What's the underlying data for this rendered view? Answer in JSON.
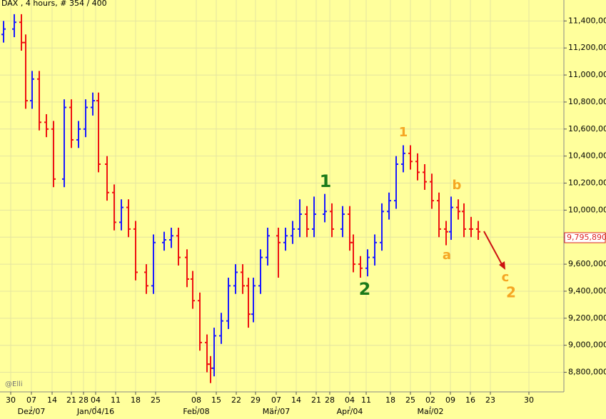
{
  "chart_data": {
    "type": "ohlc",
    "title": "DAX , 4 hours, # 354 / 400",
    "watermark": "@Elli",
    "up_color": "#1a1aff",
    "down_color": "#ee1111",
    "xlim": [
      0,
      158
    ],
    "ylim": [
      8655000,
      11555000
    ],
    "grid": true,
    "x": [
      1,
      4,
      6,
      7.2,
      9,
      11,
      13,
      15,
      18,
      20,
      22,
      24,
      26,
      27.6,
      30,
      32,
      34,
      36,
      38,
      41,
      43,
      46,
      48,
      50,
      52.4,
      54,
      56,
      58,
      59,
      60,
      62,
      64,
      66,
      68,
      69.6,
      71,
      73,
      75,
      78,
      80,
      82,
      84,
      86,
      88,
      91,
      93,
      96,
      98,
      99,
      101,
      103,
      105,
      107,
      109,
      111,
      113,
      115,
      117,
      119,
      121,
      123,
      125,
      126.4,
      128.4,
      130,
      132,
      134
    ],
    "open": [
      11300000,
      11340000,
      11390000,
      11240000,
      10810000,
      10970000,
      10650000,
      10600000,
      10230000,
      10760000,
      10520000,
      10600000,
      10760000,
      10810000,
      10340000,
      10130000,
      9910000,
      10020000,
      9860000,
      9540000,
      9440000,
      9760000,
      9780000,
      9810000,
      9650000,
      9490000,
      9330000,
      9020000,
      8860000,
      8830000,
      9070000,
      9180000,
      9440000,
      9540000,
      9440000,
      9230000,
      9440000,
      9650000,
      9810000,
      9760000,
      9810000,
      9860000,
      9970000,
      9860000,
      9970000,
      9990000,
      9860000,
      9970000,
      9760000,
      9600000,
      9570000,
      9650000,
      9760000,
      9990000,
      10070000,
      10340000,
      10420000,
      10360000,
      10280000,
      10210000,
      10070000,
      9860000,
      9840000,
      10020000,
      9990000,
      9860000,
      9860000
    ],
    "high": [
      11400000,
      11450000,
      11450000,
      11300000,
      11030000,
      11030000,
      10710000,
      10660000,
      10820000,
      10820000,
      10660000,
      10820000,
      10870000,
      10870000,
      10400000,
      10190000,
      10080000,
      10080000,
      9920000,
      9600000,
      9820000,
      9840000,
      9870000,
      9870000,
      9710000,
      9550000,
      9390000,
      9080000,
      8920000,
      9130000,
      9240000,
      9500000,
      9600000,
      9600000,
      9500000,
      9500000,
      9710000,
      9870000,
      9870000,
      9870000,
      9920000,
      10080000,
      10030000,
      10100000,
      10120000,
      10050000,
      10030000,
      10030000,
      9820000,
      9660000,
      9710000,
      9820000,
      10050000,
      10130000,
      10400000,
      10480000,
      10480000,
      10420000,
      10340000,
      10270000,
      10130000,
      9920000,
      10100000,
      10080000,
      10050000,
      9950000,
      9920000
    ],
    "low": [
      11240000,
      11280000,
      11180000,
      10750000,
      10750000,
      10590000,
      10540000,
      10170000,
      10170000,
      10460000,
      10460000,
      10540000,
      10700000,
      10280000,
      10070000,
      9850000,
      9850000,
      9800000,
      9480000,
      9380000,
      9380000,
      9700000,
      9720000,
      9590000,
      9430000,
      9270000,
      8960000,
      8800000,
      8720000,
      8770000,
      9010000,
      9120000,
      9380000,
      9380000,
      9130000,
      9170000,
      9380000,
      9590000,
      9500000,
      9700000,
      9750000,
      9800000,
      9800000,
      9800000,
      9910000,
      9800000,
      9800000,
      9700000,
      9540000,
      9500000,
      9510000,
      9590000,
      9700000,
      9930000,
      10010000,
      10280000,
      10300000,
      10220000,
      10150000,
      10010000,
      9800000,
      9740000,
      9780000,
      9930000,
      9800000,
      9800000,
      9780000
    ],
    "close": [
      11340000,
      11390000,
      11240000,
      10810000,
      10970000,
      10650000,
      10600000,
      10230000,
      10760000,
      10520000,
      10600000,
      10760000,
      10810000,
      10340000,
      10130000,
      9910000,
      10020000,
      9860000,
      9540000,
      9440000,
      9760000,
      9780000,
      9810000,
      9650000,
      9490000,
      9330000,
      9020000,
      8860000,
      8830000,
      9070000,
      9180000,
      9440000,
      9540000,
      9440000,
      9230000,
      9440000,
      9650000,
      9810000,
      9760000,
      9810000,
      9860000,
      9970000,
      9860000,
      9970000,
      9990000,
      9860000,
      9970000,
      9760000,
      9600000,
      9570000,
      9650000,
      9760000,
      9990000,
      10070000,
      10340000,
      10420000,
      10360000,
      10280000,
      10210000,
      10070000,
      9860000,
      9840000,
      10020000,
      9990000,
      9860000,
      9860000,
      9840000
    ],
    "yticks": [
      {
        "value": 8800000,
        "label": "8,800,000"
      },
      {
        "value": 9000000,
        "label": "9,000,000"
      },
      {
        "value": 9200000,
        "label": "9,200,000"
      },
      {
        "value": 9400000,
        "label": "9,400,000"
      },
      {
        "value": 9600000,
        "label": "9,600,000"
      },
      {
        "value": 9800000,
        "label": "9,800,000"
      },
      {
        "value": 10000000,
        "label": "10,000,000"
      },
      {
        "value": 10200000,
        "label": "10,200,000"
      },
      {
        "value": 10400000,
        "label": "10,400,000"
      },
      {
        "value": 10600000,
        "label": "10,600,000"
      },
      {
        "value": 10800000,
        "label": "10,800,000"
      },
      {
        "value": 11000000,
        "label": "11,000,000"
      },
      {
        "value": 11200000,
        "label": "11,200,000"
      },
      {
        "value": 11400000,
        "label": "11,400,000"
      }
    ],
    "xticks": [
      {
        "value": 3,
        "label": "30"
      },
      {
        "value": 8.8,
        "label": "07"
      },
      {
        "value": 14.6,
        "label": "14"
      },
      {
        "value": 20,
        "label": "21"
      },
      {
        "value": 23.4,
        "label": "28"
      },
      {
        "value": 26.8,
        "label": "04"
      },
      {
        "value": 32.4,
        "label": "11"
      },
      {
        "value": 38,
        "label": "18"
      },
      {
        "value": 43.6,
        "label": "25"
      },
      {
        "value": 55,
        "label": "08"
      },
      {
        "value": 60.6,
        "label": "15"
      },
      {
        "value": 66.2,
        "label": "22"
      },
      {
        "value": 71.6,
        "label": "29"
      },
      {
        "value": 77.4,
        "label": "07"
      },
      {
        "value": 83,
        "label": "14"
      },
      {
        "value": 88.6,
        "label": "21"
      },
      {
        "value": 92.4,
        "label": "28"
      },
      {
        "value": 98,
        "label": "04"
      },
      {
        "value": 102.6,
        "label": "11"
      },
      {
        "value": 109.4,
        "label": "18"
      },
      {
        "value": 115,
        "label": "25"
      },
      {
        "value": 120.6,
        "label": "02"
      },
      {
        "value": 126.2,
        "label": "09"
      },
      {
        "value": 131.8,
        "label": "16"
      },
      {
        "value": 137.4,
        "label": "23"
      },
      {
        "value": 148.2,
        "label": "30"
      }
    ],
    "month_ticks": [
      {
        "value": 8.8,
        "label": "Dez/07"
      },
      {
        "value": 26.8,
        "label": "Jan/04/16"
      },
      {
        "value": 55,
        "label": "Feb/08"
      },
      {
        "value": 77.4,
        "label": "Mär/07"
      },
      {
        "value": 98,
        "label": "Apr/04"
      },
      {
        "value": 120.6,
        "label": "Mai/02"
      }
    ],
    "last_price": {
      "value": 9795890,
      "label": "9,795,890"
    },
    "annotations": [
      {
        "text": "1",
        "color": "#1a7a1a"
      },
      {
        "text": "2",
        "color": "#1a7a1a"
      },
      {
        "text": "1",
        "color": "#f5a623"
      },
      {
        "text": "b",
        "color": "#f5a623"
      },
      {
        "text": "a",
        "color": "#f5a623"
      },
      {
        "text": "c",
        "color": "#f5a623"
      },
      {
        "text": "2",
        "color": "#f5a623"
      }
    ]
  }
}
